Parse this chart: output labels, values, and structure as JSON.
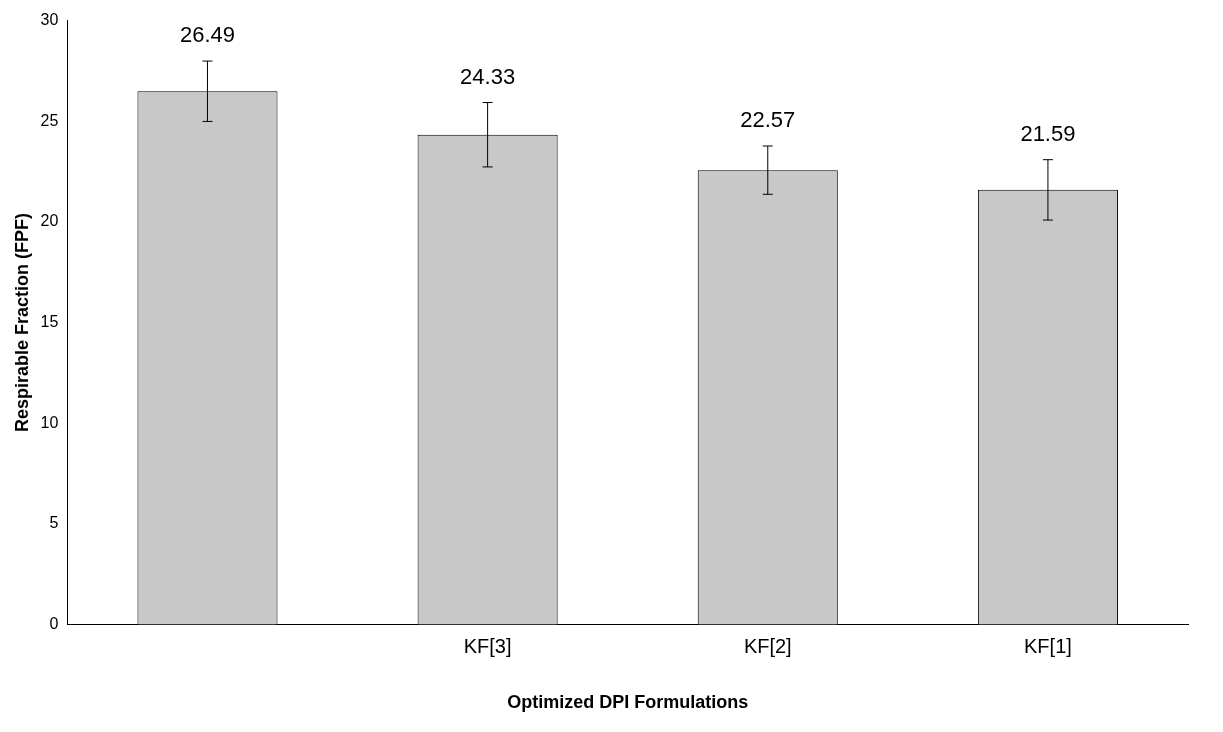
{
  "chart_data": {
    "type": "bar",
    "xlabel": "Optimized DPI Formulations",
    "ylabel": "Respirable Fraction (FPF)",
    "categories": [
      null,
      "KF[3]",
      "KF[2]",
      "KF[1]"
    ],
    "values": [
      26.49,
      24.33,
      22.57,
      21.59
    ],
    "errors": [
      1.5,
      1.6,
      1.2,
      1.5
    ],
    "color": "#c8c8c8",
    "ylim": [
      0,
      30
    ],
    "yticks": [
      0,
      5,
      10,
      15,
      20,
      25,
      30
    ],
    "data_labels": true,
    "grid": false,
    "legend": false
  }
}
